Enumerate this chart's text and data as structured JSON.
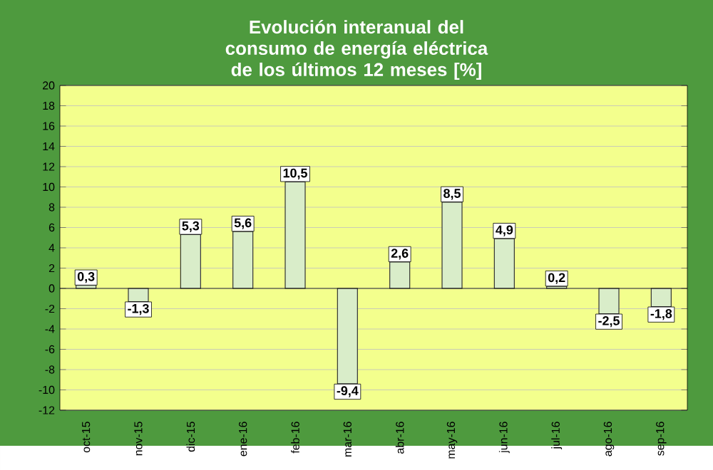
{
  "chart_data": {
    "type": "bar",
    "title": "Evolución interanual del consumo de energía eléctrica de los últimos 12 meses [%]",
    "categories": [
      "oct-15",
      "nov-15",
      "dic-15",
      "ene-16",
      "feb-16",
      "mar-16",
      "abr-16",
      "may-16",
      "jun-16",
      "jul-16",
      "ago-16",
      "sep-16"
    ],
    "values": [
      0.3,
      -1.3,
      5.3,
      5.6,
      10.5,
      -9.4,
      2.6,
      8.5,
      4.9,
      0.2,
      -2.5,
      -1.8
    ],
    "value_labels": [
      "0,3",
      "-1,3",
      "5,3",
      "5,6",
      "10,5",
      "-9,4",
      "2,6",
      "8,5",
      "4,9",
      "0,2",
      "-2,5",
      "-1,8"
    ],
    "color": "#d9edc9",
    "ylim": [
      -12,
      20
    ],
    "yticks": [
      -12,
      -10,
      -8,
      -6,
      -4,
      -2,
      0,
      2,
      4,
      6,
      8,
      10,
      12,
      14,
      16,
      18,
      20
    ],
    "grid": "y"
  }
}
